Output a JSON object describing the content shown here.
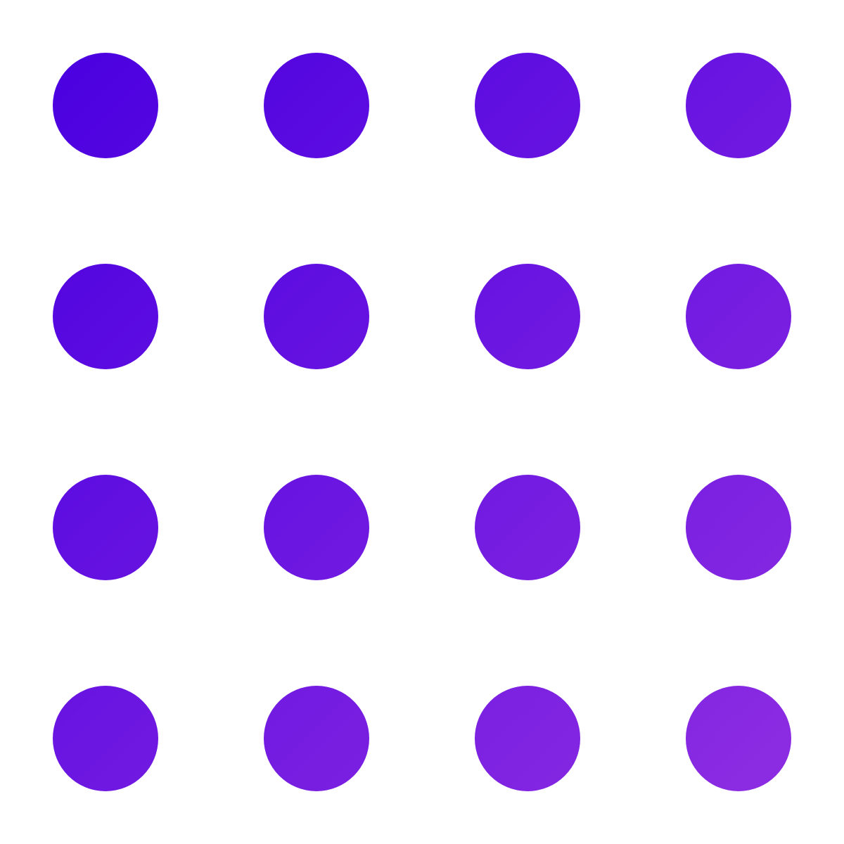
{
  "pattern": {
    "rows": 4,
    "columns": 4,
    "start_color": "#4a00e0",
    "end_color": "#8e2de2",
    "background": "#ffffff"
  }
}
